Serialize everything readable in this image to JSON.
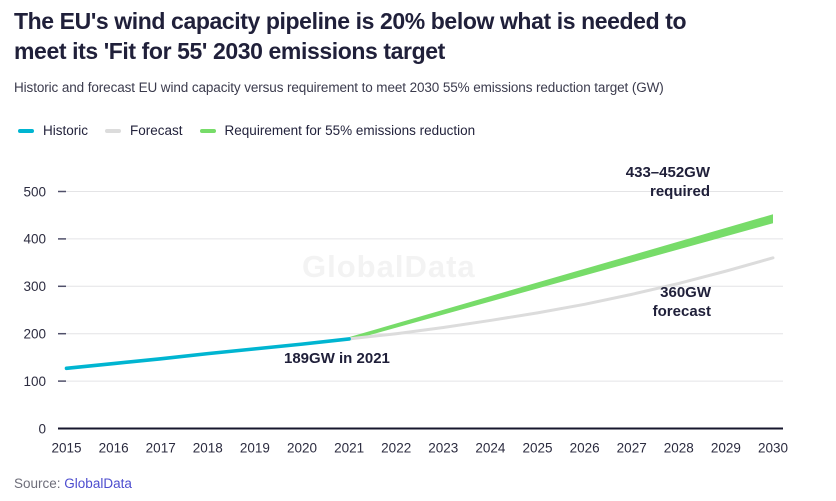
{
  "header": {
    "title": "The EU's wind capacity pipeline is 20% below what is needed to\nmeet its 'Fit for 55' 2030 emissions target",
    "subtitle": "Historic and forecast EU wind capacity versus requirement to meet 2030 55% emissions reduction target (GW)"
  },
  "legend": {
    "items": [
      {
        "label": "Historic",
        "color": "#00b5d1"
      },
      {
        "label": "Forecast",
        "color": "#dcdcdc"
      },
      {
        "label": "Requirement for 55% emissions reduction",
        "color": "#77dc69"
      }
    ]
  },
  "watermark": "GlobalData",
  "source": {
    "label": "Source:",
    "link": "GlobalData"
  },
  "chart_data": {
    "type": "line",
    "title": "The EU's wind capacity pipeline is 20% below what is needed to meet its 'Fit for 55' 2030 emissions target",
    "subtitle": "Historic and forecast EU wind capacity versus requirement to meet 2030 55% emissions reduction target (GW)",
    "units": "GW",
    "grid": true,
    "legend_position": "top-left",
    "ylim": [
      0,
      500
    ],
    "yticks": [
      0,
      100,
      200,
      300,
      400,
      500
    ],
    "xticks": [
      2015,
      2016,
      2017,
      2018,
      2019,
      2020,
      2021,
      2022,
      2023,
      2024,
      2025,
      2026,
      2027,
      2028,
      2029,
      2030
    ],
    "series": [
      {
        "name": "Historic",
        "type": "line",
        "color": "#00b5d1",
        "x": [
          2015,
          2016,
          2017,
          2018,
          2019,
          2020,
          2021
        ],
        "values": [
          127,
          137,
          147,
          158,
          168,
          178,
          189
        ]
      },
      {
        "name": "Forecast",
        "type": "line",
        "color": "#dcdcdc",
        "x": [
          2021,
          2022,
          2023,
          2024,
          2025,
          2026,
          2027,
          2028,
          2029,
          2030
        ],
        "values": [
          189,
          200,
          213,
          228,
          244,
          262,
          283,
          306,
          332,
          360
        ]
      },
      {
        "name": "Requirement for 55% emissions reduction",
        "type": "band",
        "color": "#77dc69",
        "x": [
          2021,
          2030
        ],
        "upper": [
          189,
          452
        ],
        "lower": [
          189,
          433
        ]
      }
    ],
    "annotations": [
      {
        "text": "433–452GW\nrequired",
        "x": 2030,
        "y": 452,
        "align": "right"
      },
      {
        "text": "360GW\nforecast",
        "x": 2030,
        "y": 360,
        "align": "right"
      },
      {
        "text": "189GW in 2021",
        "x": 2021,
        "y": 189,
        "align": "left"
      }
    ]
  }
}
